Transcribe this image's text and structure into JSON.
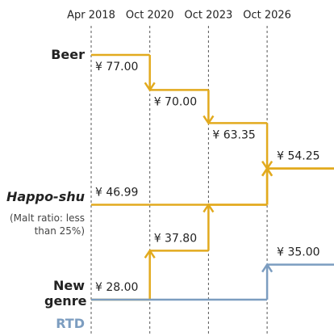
{
  "chart_data": {
    "type": "step",
    "x": [
      "Apr 2018",
      "Oct 2020",
      "Oct 2023",
      "Oct 2026"
    ],
    "ylim": [
      20,
      80
    ],
    "annotation": "(Malt ratio: less than 25%)",
    "series": [
      {
        "name": "Beer",
        "color": "#e2aa1e",
        "values": [
          77.0,
          70.0,
          63.35,
          54.25
        ],
        "value_labels": [
          "¥ 77.00",
          "¥ 70.00",
          "¥ 63.35",
          "¥ 54.25"
        ]
      },
      {
        "name": "Happo-shu",
        "color": "#e2aa1e",
        "values": [
          46.99,
          46.99,
          46.99,
          54.25
        ],
        "value_labels": [
          "¥ 46.99",
          null,
          null,
          null
        ]
      },
      {
        "name": "New genre",
        "color": "#e2aa1e",
        "values": [
          28.0,
          37.8,
          46.99,
          54.25
        ],
        "value_labels": [
          "¥ 28.00",
          "¥ 37.80",
          null,
          null
        ]
      },
      {
        "name": "RTD",
        "color": "#7c9dc0",
        "values": [
          28.0,
          28.0,
          28.0,
          35.0
        ],
        "value_labels": [
          null,
          null,
          null,
          "¥ 35.00"
        ]
      }
    ]
  }
}
